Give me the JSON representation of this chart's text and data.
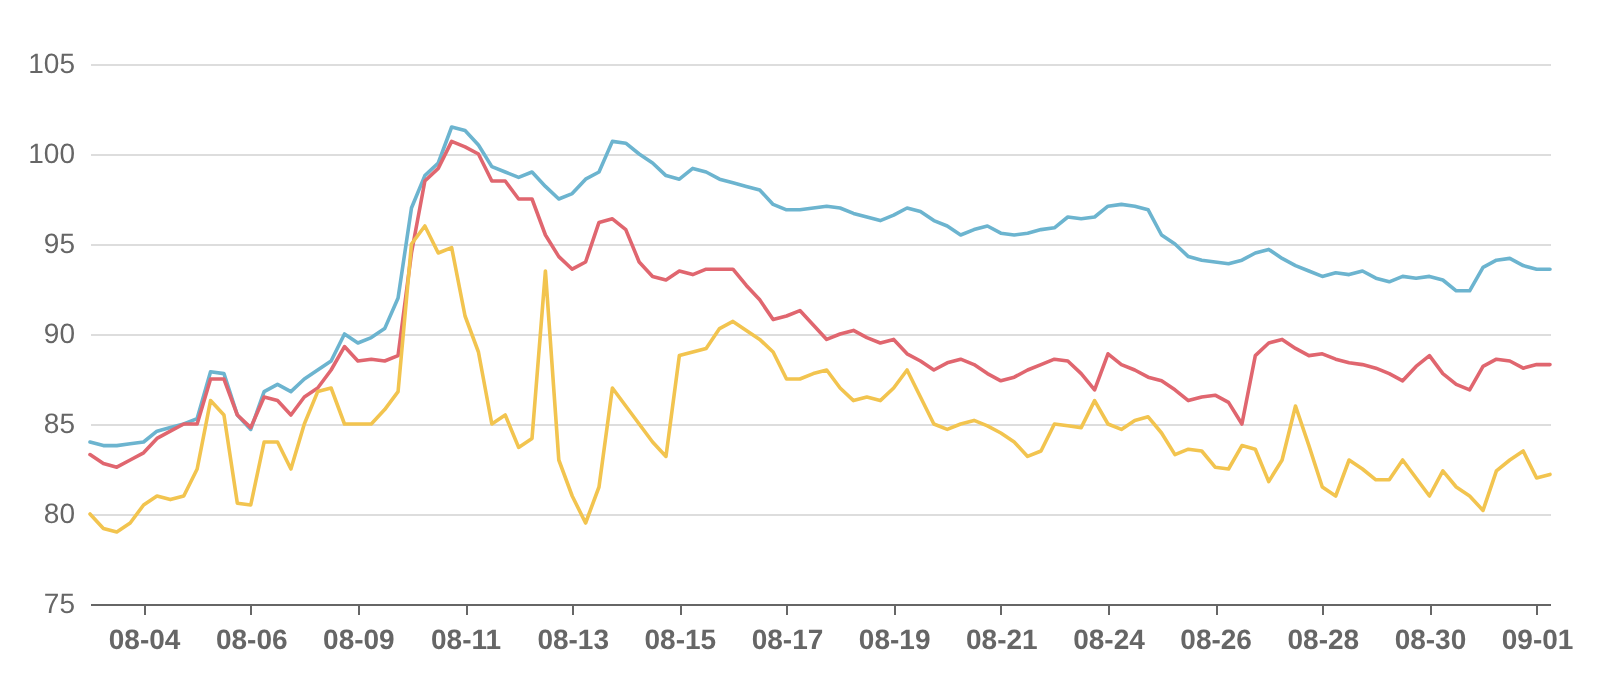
{
  "chart_data": {
    "type": "line",
    "categories": [
      null,
      null,
      null,
      null,
      "08-04",
      null,
      null,
      null,
      null,
      null,
      null,
      null,
      "08-06",
      null,
      null,
      null,
      null,
      null,
      null,
      null,
      "08-09",
      null,
      null,
      null,
      null,
      null,
      null,
      null,
      "08-11",
      null,
      null,
      null,
      null,
      null,
      null,
      null,
      "08-13",
      null,
      null,
      null,
      null,
      null,
      null,
      null,
      "08-15",
      null,
      null,
      null,
      null,
      null,
      null,
      null,
      "08-17",
      null,
      null,
      null,
      null,
      null,
      null,
      null,
      "08-19",
      null,
      null,
      null,
      null,
      null,
      null,
      null,
      "08-21",
      null,
      null,
      null,
      null,
      null,
      null,
      null,
      "08-24",
      null,
      null,
      null,
      null,
      null,
      null,
      null,
      "08-26",
      null,
      null,
      null,
      null,
      null,
      null,
      null,
      "08-28",
      null,
      null,
      null,
      null,
      null,
      null,
      null,
      "08-30",
      null,
      null,
      null,
      null,
      null,
      null,
      null,
      "09-01",
      null
    ],
    "series": [
      {
        "color": "#6cb4cf",
        "values": [
          84,
          83.8,
          83.8,
          83.9,
          84,
          84.6,
          84.8,
          85,
          85.3,
          87.9,
          87.8,
          85.5,
          84.7,
          86.8,
          87.2,
          86.8,
          87.5,
          88,
          88.5,
          90,
          89.5,
          89.8,
          90.3,
          92,
          97,
          98.8,
          99.5,
          101.5,
          101.3,
          100.5,
          99.3,
          99,
          98.7,
          99,
          98.2,
          97.5,
          97.8,
          98.6,
          99,
          100.7,
          100.6,
          100,
          99.5,
          98.8,
          98.6,
          99.2,
          99,
          98.6,
          98.4,
          98.2,
          98,
          97.2,
          96.9,
          96.9,
          97,
          97.1,
          97,
          96.7,
          96.5,
          96.3,
          96.6,
          97,
          96.8,
          96.3,
          96,
          95.5,
          95.8,
          96,
          95.6,
          95.5,
          95.6,
          95.8,
          95.9,
          96.5,
          96.4,
          96.5,
          97.1,
          97.2,
          97.1,
          96.9,
          95.5,
          95,
          94.3,
          94.1,
          94,
          93.9,
          94.1,
          94.5,
          94.7,
          94.2,
          93.8,
          93.5,
          93.2,
          93.4,
          93.3,
          93.5,
          93.1,
          92.9,
          93.2,
          93.1,
          93.2,
          93,
          92.4,
          92.4,
          93.7,
          94.1,
          94.2,
          93.8,
          93.6,
          93.6
        ]
      },
      {
        "color": "#e0666f",
        "values": [
          83.3,
          82.8,
          82.6,
          83,
          83.4,
          84.2,
          84.6,
          85,
          85,
          87.5,
          87.5,
          85.5,
          84.8,
          86.5,
          86.3,
          85.5,
          86.5,
          87,
          88,
          89.3,
          88.5,
          88.6,
          88.5,
          88.8,
          94.5,
          98.5,
          99.2,
          100.7,
          100.4,
          100,
          98.5,
          98.5,
          97.5,
          97.5,
          95.5,
          94.3,
          93.6,
          94,
          96.2,
          96.4,
          95.8,
          94,
          93.2,
          93,
          93.5,
          93.3,
          93.6,
          93.6,
          93.6,
          92.7,
          91.9,
          90.8,
          91,
          91.3,
          90.5,
          89.7,
          90,
          90.2,
          89.8,
          89.5,
          89.7,
          88.9,
          88.5,
          88,
          88.4,
          88.6,
          88.3,
          87.8,
          87.4,
          87.6,
          88,
          88.3,
          88.6,
          88.5,
          87.8,
          86.9,
          88.9,
          88.3,
          88,
          87.6,
          87.4,
          86.9,
          86.3,
          86.5,
          86.6,
          86.2,
          85,
          88.8,
          89.5,
          89.7,
          89.2,
          88.8,
          88.9,
          88.6,
          88.4,
          88.3,
          88.1,
          87.8,
          87.4,
          88.2,
          88.8,
          87.8,
          87.2,
          86.9,
          88.2,
          88.6,
          88.5,
          88.1,
          88.3,
          88.3
        ]
      },
      {
        "color": "#f2c44f",
        "values": [
          80,
          79.2,
          79,
          79.5,
          80.5,
          81,
          80.8,
          81,
          82.5,
          86.3,
          85.5,
          80.6,
          80.5,
          84,
          84,
          82.5,
          85,
          86.8,
          87,
          85,
          85,
          85,
          85.8,
          86.8,
          95,
          96,
          94.5,
          94.8,
          91,
          89,
          85,
          85.5,
          83.7,
          84.2,
          93.5,
          83,
          81,
          79.5,
          81.5,
          87,
          86,
          85,
          84,
          83.2,
          88.8,
          89,
          89.2,
          90.3,
          90.7,
          90.2,
          89.7,
          89,
          87.5,
          87.5,
          87.8,
          88,
          87,
          86.3,
          86.5,
          86.3,
          87,
          88,
          86.5,
          85,
          84.7,
          85,
          85.2,
          84.9,
          84.5,
          84,
          83.2,
          83.5,
          85,
          84.9,
          84.8,
          86.3,
          85,
          84.7,
          85.2,
          85.4,
          84.5,
          83.3,
          83.6,
          83.5,
          82.6,
          82.5,
          83.8,
          83.6,
          81.8,
          83,
          86,
          83.8,
          81.5,
          81,
          83,
          82.5,
          81.9,
          81.9,
          83,
          82,
          81,
          82.4,
          81.5,
          81,
          80.2,
          82.4,
          83,
          83.5,
          82,
          82.2
        ]
      }
    ],
    "ylim": [
      75,
      105
    ],
    "yticks": [
      75,
      80,
      85,
      90,
      95,
      100,
      105
    ],
    "grid": "y",
    "legend": false
  }
}
